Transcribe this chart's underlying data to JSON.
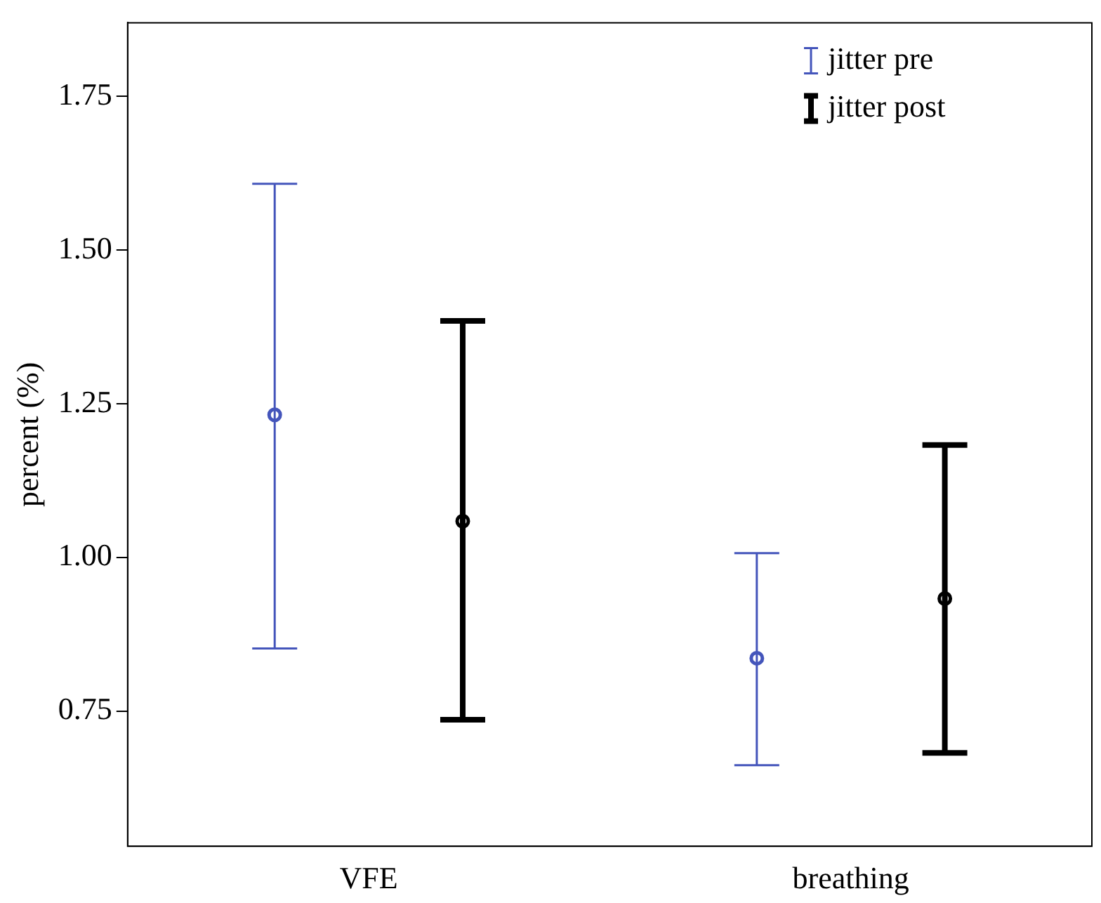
{
  "chart_data": {
    "type": "scatter",
    "ylabel": "percent (%)",
    "categories": [
      "VFE",
      "breathing"
    ],
    "series": [
      {
        "name": "jitter pre",
        "color": "#4455bb",
        "values": [
          1.232,
          0.836
        ],
        "errors": [
          [
            0.852,
            1.608
          ],
          [
            0.662,
            1.007
          ]
        ]
      },
      {
        "name": "jitter post",
        "color": "#000000",
        "values": [
          1.059,
          0.933
        ],
        "errors": [
          [
            0.736,
            1.385
          ],
          [
            0.682,
            1.183
          ]
        ]
      }
    ],
    "ylim": [
      0.53,
      1.87
    ],
    "yticks": [
      {
        "value": 0.75,
        "label": "0.75"
      },
      {
        "value": 1.0,
        "label": "1.00"
      },
      {
        "value": 1.25,
        "label": "1.25"
      },
      {
        "value": 1.5,
        "label": "1.50"
      },
      {
        "value": 1.75,
        "label": "1.75"
      }
    ],
    "marker": "circle",
    "legend": "top right",
    "grid": false
  }
}
